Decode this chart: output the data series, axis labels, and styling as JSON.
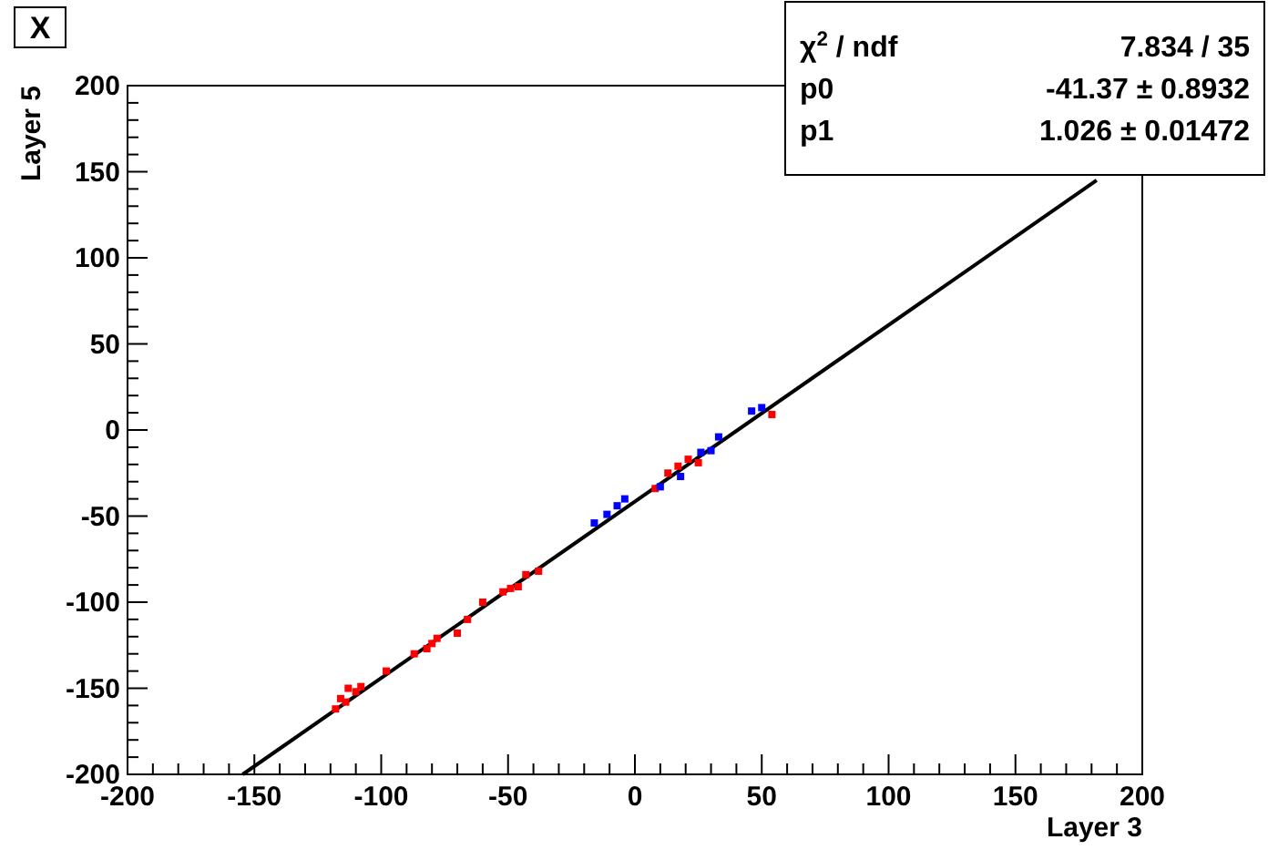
{
  "chart_data": {
    "type": "scatter",
    "title": "X",
    "xlabel": "Layer 3",
    "ylabel": "Layer 5",
    "xlim": [
      -200,
      200
    ],
    "ylim": [
      -200,
      200
    ],
    "xticks": [
      -200,
      {
        "value": -190,
        "label": null
      },
      {
        "value": -180,
        "label": null
      },
      {
        "value": -170,
        "label": null
      },
      {
        "value": -160,
        "label": null
      },
      -150,
      {
        "value": -140,
        "label": null
      },
      {
        "value": -130,
        "label": null
      },
      {
        "value": -120,
        "label": null
      },
      {
        "value": -110,
        "label": null
      },
      -100,
      {
        "value": -90,
        "label": null
      },
      {
        "value": -80,
        "label": null
      },
      {
        "value": -70,
        "label": null
      },
      {
        "value": -60,
        "label": null
      },
      -50,
      {
        "value": -40,
        "label": null
      },
      {
        "value": -30,
        "label": null
      },
      {
        "value": -20,
        "label": null
      },
      {
        "value": -10,
        "label": null
      },
      0,
      {
        "value": 10,
        "label": null
      },
      {
        "value": 20,
        "label": null
      },
      {
        "value": 30,
        "label": null
      },
      {
        "value": 40,
        "label": null
      },
      50,
      {
        "value": 60,
        "label": null
      },
      {
        "value": 70,
        "label": null
      },
      {
        "value": 80,
        "label": null
      },
      {
        "value": 90,
        "label": null
      },
      100,
      {
        "value": 110,
        "label": null
      },
      {
        "value": 120,
        "label": null
      },
      {
        "value": 130,
        "label": null
      },
      {
        "value": 140,
        "label": null
      },
      150,
      {
        "value": 160,
        "label": null
      },
      {
        "value": 170,
        "label": null
      },
      {
        "value": 180,
        "label": null
      },
      {
        "value": 190,
        "label": null
      },
      200
    ],
    "yticks": [
      -200,
      {
        "value": -190,
        "label": null
      },
      {
        "value": -180,
        "label": null
      },
      {
        "value": -170,
        "label": null
      },
      {
        "value": -160,
        "label": null
      },
      -150,
      {
        "value": -140,
        "label": null
      },
      {
        "value": -130,
        "label": null
      },
      {
        "value": -120,
        "label": null
      },
      {
        "value": -110,
        "label": null
      },
      -100,
      {
        "value": -90,
        "label": null
      },
      {
        "value": -80,
        "label": null
      },
      {
        "value": -70,
        "label": null
      },
      {
        "value": -60,
        "label": null
      },
      -50,
      {
        "value": -40,
        "label": null
      },
      {
        "value": -30,
        "label": null
      },
      {
        "value": -20,
        "label": null
      },
      {
        "value": -10,
        "label": null
      },
      0,
      {
        "value": 10,
        "label": null
      },
      {
        "value": 20,
        "label": null
      },
      {
        "value": 30,
        "label": null
      },
      {
        "value": 40,
        "label": null
      },
      50,
      {
        "value": 60,
        "label": null
      },
      {
        "value": 70,
        "label": null
      },
      {
        "value": 80,
        "label": null
      },
      {
        "value": 90,
        "label": null
      },
      100,
      {
        "value": 110,
        "label": null
      },
      {
        "value": 120,
        "label": null
      },
      {
        "value": 130,
        "label": null
      },
      {
        "value": 140,
        "label": null
      },
      150,
      {
        "value": 160,
        "label": null
      },
      {
        "value": 170,
        "label": null
      },
      {
        "value": 180,
        "label": null
      },
      {
        "value": 190,
        "label": null
      },
      200
    ],
    "marker": "square",
    "grid": false,
    "series": [
      {
        "type": "line",
        "marker": "none",
        "color": "#000000",
        "x": [
          -154.6,
          182
        ],
        "values": [
          -200,
          145
        ]
      },
      {
        "color": "#ff0000",
        "x": [
          -38,
          -43,
          -46,
          -49,
          -52,
          -60,
          -66,
          -70,
          -78,
          -80,
          -82,
          -87,
          -98,
          -108,
          -110,
          -113,
          -116,
          -114,
          -118,
          54,
          25,
          21,
          17,
          13,
          8
        ],
        "values": [
          -82,
          -84,
          -91,
          -92,
          -94,
          -100,
          -110,
          -118,
          -121,
          -124,
          -127,
          -130,
          -140,
          -149,
          -152,
          -150,
          -156,
          -158,
          -162,
          9,
          -19,
          -17,
          -21,
          -25,
          -34
        ]
      },
      {
        "color": "#0000ff",
        "x": [
          50,
          46,
          33,
          30,
          26,
          18,
          10,
          -4,
          -7,
          -11,
          -16
        ],
        "values": [
          13,
          11,
          -4,
          -12,
          -13,
          -27,
          -33,
          -40,
          -44,
          -49,
          -54
        ]
      }
    ],
    "annotations": [
      "χ$^{2}$ / ndf",
      "7.834 / 35",
      "p0",
      "-41.37 ± 0.8932",
      "p1",
      "1.026 ± 0.01472"
    ]
  }
}
